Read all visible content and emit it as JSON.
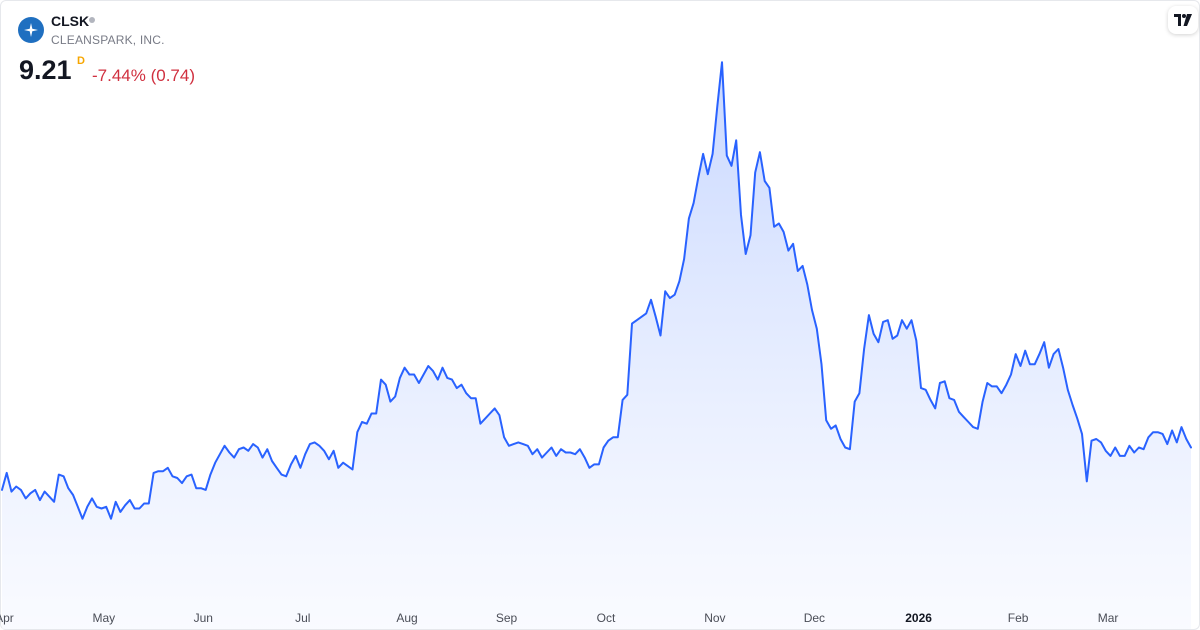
{
  "symbol": {
    "ticker": "CLSK",
    "company": "CLEANSPARK, INC.",
    "price": "9.21",
    "interval": "D",
    "change": "-7.44% (0.74)",
    "logo_icon": "sparkle-star-icon",
    "badge_icon": "tradingview-logo-icon"
  },
  "colors": {
    "line": "#2962ff",
    "fill_top": "#c9d8ff",
    "fill_bottom": "#f7f9ff",
    "negative": "#d0303f",
    "interval": "#f7a600",
    "logo": "#1f6fc0"
  },
  "chart_data": {
    "type": "area",
    "title": "",
    "xlabel": "",
    "ylabel": "",
    "x_ticks": [
      {
        "label": "Apr",
        "x": 0.5
      },
      {
        "label": "May",
        "x": 21.5
      },
      {
        "label": "Jun",
        "x": 42.5
      },
      {
        "label": "Jul",
        "x": 63.5
      },
      {
        "label": "Aug",
        "x": 85.5
      },
      {
        "label": "Sep",
        "x": 106.5
      },
      {
        "label": "Oct",
        "x": 127.5
      },
      {
        "label": "Nov",
        "x": 150.5
      },
      {
        "label": "Dec",
        "x": 171.5
      },
      {
        "label": "2026",
        "x": 193.5,
        "bold": true
      },
      {
        "label": "Feb",
        "x": 214.5
      },
      {
        "label": "Mar",
        "x": 233.5
      }
    ],
    "grid": false,
    "legend": "none",
    "ylim": [
      4.5,
      21
    ],
    "series": [
      {
        "values": [
          7.45,
          7.95,
          7.4,
          7.55,
          7.45,
          7.2,
          7.35,
          7.45,
          7.15,
          7.4,
          7.25,
          7.1,
          7.9,
          7.85,
          7.5,
          7.3,
          6.95,
          6.6,
          6.95,
          7.2,
          6.95,
          6.9,
          6.95,
          6.6,
          7.1,
          6.8,
          7.0,
          7.15,
          6.9,
          6.9,
          7.05,
          7.05,
          7.95,
          8.0,
          8.0,
          8.1,
          7.85,
          7.8,
          7.65,
          7.85,
          7.9,
          7.5,
          7.5,
          7.45,
          7.9,
          8.25,
          8.5,
          8.75,
          8.55,
          8.4,
          8.65,
          8.7,
          8.6,
          8.8,
          8.7,
          8.4,
          8.65,
          8.3,
          8.1,
          7.9,
          7.85,
          8.2,
          8.45,
          8.1,
          8.5,
          8.8,
          8.85,
          8.75,
          8.6,
          8.35,
          8.6,
          8.1,
          8.25,
          8.15,
          8.05,
          9.15,
          9.45,
          9.4,
          9.7,
          9.7,
          10.7,
          10.55,
          10.05,
          10.2,
          10.75,
          11.05,
          10.85,
          10.85,
          10.6,
          10.85,
          11.1,
          10.95,
          10.7,
          11.05,
          10.75,
          10.7,
          10.45,
          10.55,
          10.3,
          10.15,
          10.15,
          9.4,
          9.55,
          9.7,
          9.85,
          9.65,
          9.0,
          8.75,
          8.8,
          8.85,
          8.8,
          8.75,
          8.5,
          8.65,
          8.4,
          8.55,
          8.7,
          8.45,
          8.65,
          8.55,
          8.55,
          8.5,
          8.65,
          8.4,
          8.1,
          8.2,
          8.2,
          8.7,
          8.9,
          9.0,
          9.0,
          10.1,
          10.25,
          12.35,
          12.45,
          12.55,
          12.65,
          13.05,
          12.55,
          12.0,
          13.3,
          13.1,
          13.2,
          13.6,
          14.25,
          15.45,
          15.9,
          16.65,
          17.35,
          16.75,
          17.35,
          18.75,
          20.05,
          17.3,
          17.0,
          17.75,
          15.55,
          14.4,
          14.95,
          16.8,
          17.4,
          16.55,
          16.35,
          15.2,
          15.3,
          15.05,
          14.5,
          14.7,
          13.9,
          14.05,
          13.5,
          12.75,
          12.2,
          11.15,
          9.5,
          9.25,
          9.35,
          8.95,
          8.7,
          8.65,
          10.05,
          10.3,
          11.6,
          12.6,
          12.05,
          11.8,
          12.4,
          12.45,
          11.9,
          12.0,
          12.45,
          12.2,
          12.45,
          11.85,
          10.45,
          10.4,
          10.1,
          9.85,
          10.6,
          10.65,
          10.15,
          10.1,
          9.75,
          9.6,
          9.45,
          9.3,
          9.25,
          10.05,
          10.6,
          10.5,
          10.5,
          10.3,
          10.55,
          10.85,
          11.45,
          11.1,
          11.55,
          11.15,
          11.15,
          11.45,
          11.8,
          11.05,
          11.45,
          11.6,
          11.05,
          10.4,
          9.95,
          9.55,
          9.1,
          7.7,
          8.9,
          8.95,
          8.85,
          8.6,
          8.45,
          8.7,
          8.45,
          8.45,
          8.75,
          8.55,
          8.7,
          8.65,
          9.0,
          9.15,
          9.15,
          9.1,
          8.8,
          9.2,
          8.85,
          9.3,
          8.95,
          8.7
        ]
      }
    ]
  }
}
